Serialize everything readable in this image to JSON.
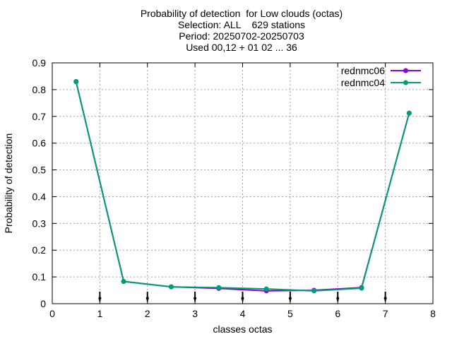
{
  "chart_data": {
    "type": "line",
    "title_lines": [
      "Probability of detection  for Low clouds (octas)",
      "Selection: ALL    629 stations",
      "Period: 20250702-20250703",
      "Used 00,12 + 01 02 ... 36"
    ],
    "xlabel": "classes octas",
    "ylabel": "Probability of detection",
    "xlim": [
      0,
      8
    ],
    "ylim": [
      0,
      0.9
    ],
    "xticks": [
      0,
      1,
      2,
      3,
      4,
      5,
      6,
      7,
      8
    ],
    "yticks": [
      0,
      0.1,
      0.2,
      0.3,
      0.4,
      0.5,
      0.6,
      0.7,
      0.8,
      0.9
    ],
    "grid": true,
    "legend_position": "top-right",
    "series": [
      {
        "name": "rednmc06",
        "color": "#9400d3",
        "x": [
          0.5,
          1.5,
          2.5,
          3.5,
          4.5,
          5.5,
          6.5,
          7.5
        ],
        "y": [
          0.83,
          0.083,
          0.063,
          0.057,
          0.048,
          0.05,
          0.06,
          0.712
        ]
      },
      {
        "name": "rednmc04",
        "color": "#009e73",
        "x": [
          0.5,
          1.5,
          2.5,
          3.5,
          4.5,
          5.5,
          6.5,
          7.5
        ],
        "y": [
          0.83,
          0.083,
          0.063,
          0.06,
          0.055,
          0.048,
          0.058,
          0.712
        ]
      }
    ],
    "error_bars": {
      "color": "#000000",
      "x": [
        1,
        2,
        3,
        4,
        5,
        6,
        7
      ],
      "y": [
        0.02,
        0.02,
        0.02,
        0.02,
        0.02,
        0.02,
        0.02
      ],
      "low": [
        0.008,
        0.008,
        0.008,
        0.008,
        0.008,
        0.008,
        0.008
      ],
      "high": [
        0.045,
        0.045,
        0.045,
        0.045,
        0.045,
        0.045,
        0.045
      ]
    }
  }
}
